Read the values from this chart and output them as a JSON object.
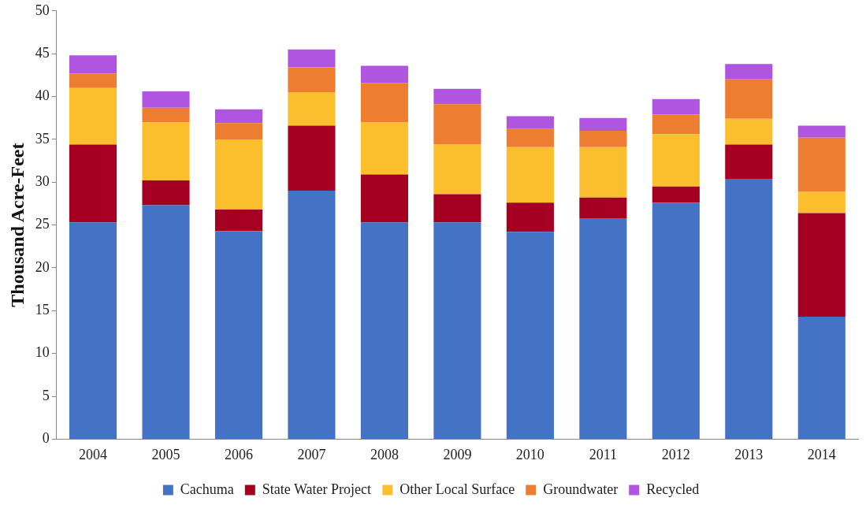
{
  "chart_data": {
    "type": "bar",
    "stacked": true,
    "ylabel": "Thousand Acre-Feet",
    "categories": [
      "2004",
      "2005",
      "2006",
      "2007",
      "2008",
      "2009",
      "2010",
      "2011",
      "2012",
      "2013",
      "2014"
    ],
    "series": [
      {
        "name": "Cachuma",
        "color": "#4472c4",
        "values": [
          25.3,
          27.3,
          24.3,
          29.0,
          25.3,
          25.3,
          24.2,
          25.8,
          27.6,
          30.4,
          14.3
        ]
      },
      {
        "name": "State Water Project",
        "color": "#a50021",
        "values": [
          9.1,
          2.9,
          2.5,
          7.6,
          5.6,
          3.3,
          3.4,
          2.4,
          1.9,
          4.0,
          12.1
        ]
      },
      {
        "name": "Other Local Surface",
        "color": "#fbbf2d",
        "values": [
          6.6,
          6.8,
          8.2,
          3.9,
          6.1,
          5.8,
          6.5,
          5.9,
          6.1,
          3.0,
          2.5
        ]
      },
      {
        "name": "Groundwater",
        "color": "#ed7d31",
        "values": [
          1.7,
          1.7,
          1.9,
          2.9,
          4.6,
          4.7,
          2.1,
          1.9,
          2.3,
          4.6,
          6.3
        ]
      },
      {
        "name": "Recycled",
        "color": "#b055e0",
        "values": [
          2.1,
          1.9,
          1.6,
          2.1,
          2.0,
          1.8,
          1.5,
          1.5,
          1.8,
          1.8,
          1.4
        ]
      }
    ],
    "ylim": [
      0,
      50
    ],
    "yticks": [
      0,
      5,
      10,
      15,
      20,
      25,
      30,
      35,
      40,
      45,
      50
    ],
    "grid": false,
    "legend": "bottom"
  }
}
